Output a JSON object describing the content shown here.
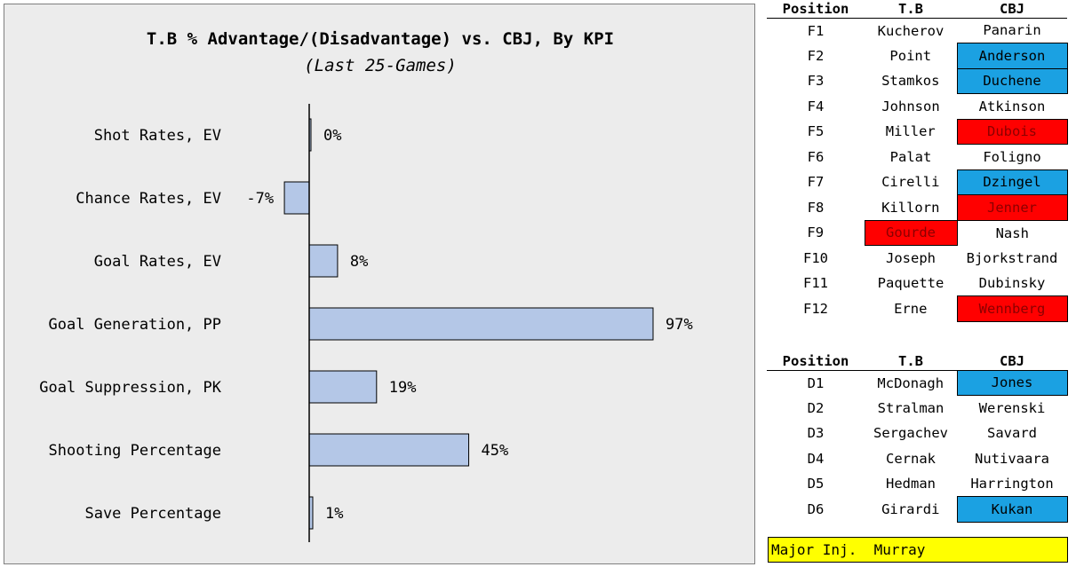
{
  "chart_data": {
    "type": "bar",
    "orientation": "horizontal",
    "title": "T.B % Advantage/(Disadvantage) vs. CBJ, By KPI",
    "subtitle": "(Last 25-Games)",
    "categories": [
      "Shot Rates, EV",
      "Chance Rates, EV",
      "Goal Rates, EV",
      "Goal Generation, PP",
      "Goal Suppression, PK",
      "Shooting Percentage",
      "Save Percentage"
    ],
    "values": [
      0,
      -7,
      8,
      97,
      19,
      45,
      1
    ],
    "value_labels": [
      "0%",
      "-7%",
      "8%",
      "97%",
      "19%",
      "45%",
      "1%"
    ],
    "bar_color": "#b4c7e7",
    "bar_stroke": "#000000",
    "grid": false,
    "legend": "none"
  },
  "forwards": {
    "headers": [
      "Position",
      "T.B",
      "CBJ"
    ],
    "rows": [
      {
        "pos": "F1",
        "tb": "Kucherov",
        "cbj": "Panarin",
        "tb_flag": "",
        "cbj_flag": ""
      },
      {
        "pos": "F2",
        "tb": "Point",
        "cbj": "Anderson",
        "tb_flag": "",
        "cbj_flag": "blue"
      },
      {
        "pos": "F3",
        "tb": "Stamkos",
        "cbj": "Duchene",
        "tb_flag": "",
        "cbj_flag": "blue"
      },
      {
        "pos": "F4",
        "tb": "Johnson",
        "cbj": "Atkinson",
        "tb_flag": "",
        "cbj_flag": ""
      },
      {
        "pos": "F5",
        "tb": "Miller",
        "cbj": "Dubois",
        "tb_flag": "",
        "cbj_flag": "red"
      },
      {
        "pos": "F6",
        "tb": "Palat",
        "cbj": "Foligno",
        "tb_flag": "",
        "cbj_flag": ""
      },
      {
        "pos": "F7",
        "tb": "Cirelli",
        "cbj": "Dzingel",
        "tb_flag": "",
        "cbj_flag": "blue"
      },
      {
        "pos": "F8",
        "tb": "Killorn",
        "cbj": "Jenner",
        "tb_flag": "",
        "cbj_flag": "red"
      },
      {
        "pos": "F9",
        "tb": "Gourde",
        "cbj": "Nash",
        "tb_flag": "red",
        "cbj_flag": ""
      },
      {
        "pos": "F10",
        "tb": "Joseph",
        "cbj": "Bjorkstrand",
        "tb_flag": "",
        "cbj_flag": ""
      },
      {
        "pos": "F11",
        "tb": "Paquette",
        "cbj": "Dubinsky",
        "tb_flag": "",
        "cbj_flag": ""
      },
      {
        "pos": "F12",
        "tb": "Erne",
        "cbj": "Wennberg",
        "tb_flag": "",
        "cbj_flag": "red"
      }
    ]
  },
  "defense": {
    "headers": [
      "Position",
      "T.B",
      "CBJ"
    ],
    "rows": [
      {
        "pos": "D1",
        "tb": "McDonagh",
        "cbj": "Jones",
        "tb_flag": "",
        "cbj_flag": "blue"
      },
      {
        "pos": "D2",
        "tb": "Stralman",
        "cbj": "Werenski",
        "tb_flag": "",
        "cbj_flag": ""
      },
      {
        "pos": "D3",
        "tb": "Sergachev",
        "cbj": "Savard",
        "tb_flag": "",
        "cbj_flag": ""
      },
      {
        "pos": "D4",
        "tb": "Cernak",
        "cbj": "Nutivaara",
        "tb_flag": "",
        "cbj_flag": ""
      },
      {
        "pos": "D5",
        "tb": "Hedman",
        "cbj": "Harrington",
        "tb_flag": "",
        "cbj_flag": ""
      },
      {
        "pos": "D6",
        "tb": "Girardi",
        "cbj": "Kukan",
        "tb_flag": "",
        "cbj_flag": "blue"
      }
    ]
  },
  "injury": {
    "label": "Major Inj.",
    "player": "Murray"
  }
}
